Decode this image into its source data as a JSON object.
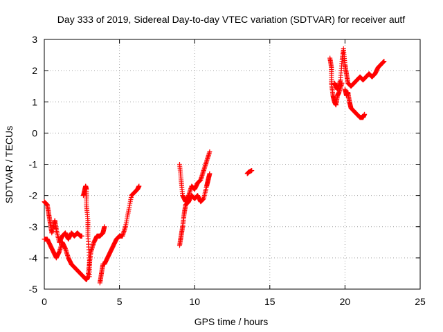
{
  "chart_data": {
    "type": "scatter",
    "title": "Day 333 of 2019, Sidereal Day-to-day VTEC variation (SDTVAR) for receiver autf",
    "xlabel": "GPS time / hours",
    "ylabel": "SDTVAR / TECUs",
    "xlim": [
      0,
      25
    ],
    "ylim": [
      -5,
      3
    ],
    "xticks": [
      0,
      5,
      10,
      15,
      20,
      25
    ],
    "yticks": [
      -5,
      -4,
      -3,
      -2,
      -1,
      0,
      1,
      2,
      3
    ],
    "xtick_labels": [
      "0",
      "5",
      "10",
      "15",
      "20",
      "25"
    ],
    "ytick_labels": [
      "-5",
      "-4",
      "-3",
      "-2",
      "-1",
      "0",
      "1",
      "2",
      "3"
    ],
    "grid": true,
    "marker": "plus",
    "color": "#ff0000",
    "series": [
      {
        "segments": [
          [
            [
              0.0,
              -2.2
            ],
            [
              0.2,
              -2.3
            ],
            [
              0.3,
              -2.6
            ],
            [
              0.4,
              -2.9
            ],
            [
              0.5,
              -3.2
            ],
            [
              0.7,
              -2.8
            ],
            [
              0.8,
              -3.1
            ],
            [
              1.0,
              -3.5
            ],
            [
              1.2,
              -3.3
            ],
            [
              1.4,
              -3.2
            ],
            [
              1.6,
              -3.4
            ],
            [
              1.8,
              -3.2
            ],
            [
              2.0,
              -3.3
            ],
            [
              2.2,
              -3.2
            ],
            [
              2.4,
              -3.3
            ],
            [
              2.5,
              -3.3
            ]
          ],
          [
            [
              0.0,
              -3.4
            ],
            [
              0.2,
              -3.4
            ],
            [
              0.4,
              -3.6
            ],
            [
              0.6,
              -3.8
            ],
            [
              0.8,
              -4.0
            ],
            [
              1.0,
              -3.8
            ],
            [
              1.2,
              -3.5
            ],
            [
              1.4,
              -3.7
            ],
            [
              1.6,
              -4.0
            ],
            [
              1.8,
              -4.2
            ],
            [
              2.0,
              -4.3
            ],
            [
              2.2,
              -4.4
            ],
            [
              2.4,
              -4.5
            ],
            [
              2.6,
              -4.6
            ],
            [
              2.8,
              -4.7
            ],
            [
              2.9,
              -4.6
            ]
          ],
          [
            [
              2.6,
              -2.0
            ],
            [
              2.7,
              -1.8
            ],
            [
              2.75,
              -1.7
            ],
            [
              2.8,
              -1.8
            ],
            [
              2.8,
              -2.3
            ],
            [
              2.9,
              -2.8
            ],
            [
              2.9,
              -3.3
            ],
            [
              3.0,
              -4.0
            ],
            [
              3.0,
              -4.6
            ]
          ],
          [
            [
              2.9,
              -4.6
            ],
            [
              3.0,
              -4.2
            ],
            [
              3.1,
              -3.8
            ],
            [
              3.3,
              -3.5
            ],
            [
              3.5,
              -3.3
            ],
            [
              3.7,
              -3.3
            ],
            [
              3.9,
              -3.2
            ],
            [
              4.0,
              -3.0
            ]
          ],
          [
            [
              3.7,
              -4.8
            ],
            [
              3.8,
              -4.5
            ],
            [
              3.9,
              -4.2
            ],
            [
              4.0,
              -4.2
            ],
            [
              4.2,
              -4.0
            ],
            [
              4.4,
              -3.8
            ],
            [
              4.6,
              -3.6
            ],
            [
              4.8,
              -3.4
            ],
            [
              5.0,
              -3.3
            ],
            [
              5.2,
              -3.3
            ],
            [
              5.4,
              -3.0
            ],
            [
              5.6,
              -2.5
            ],
            [
              5.8,
              -2.0
            ],
            [
              6.0,
              -1.9
            ],
            [
              6.2,
              -1.8
            ],
            [
              6.3,
              -1.7
            ]
          ],
          [
            [
              9.0,
              -3.6
            ],
            [
              9.1,
              -3.3
            ],
            [
              9.2,
              -3.0
            ],
            [
              9.3,
              -2.6
            ],
            [
              9.4,
              -2.3
            ],
            [
              9.6,
              -2.2
            ],
            [
              9.8,
              -2.0
            ],
            [
              10.0,
              -2.1
            ],
            [
              10.2,
              -2.0
            ],
            [
              10.4,
              -2.2
            ],
            [
              10.6,
              -2.1
            ],
            [
              10.8,
              -1.7
            ],
            [
              10.9,
              -1.5
            ],
            [
              11.0,
              -1.3
            ]
          ],
          [
            [
              9.0,
              -1.0
            ],
            [
              9.1,
              -1.5
            ],
            [
              9.2,
              -2.0
            ],
            [
              9.4,
              -2.2
            ],
            [
              9.6,
              -2.0
            ],
            [
              9.8,
              -1.7
            ],
            [
              10.0,
              -1.8
            ],
            [
              10.2,
              -1.6
            ],
            [
              10.4,
              -1.5
            ],
            [
              10.6,
              -1.2
            ],
            [
              10.8,
              -0.9
            ],
            [
              11.0,
              -0.6
            ]
          ],
          [
            [
              13.5,
              -1.3
            ],
            [
              13.6,
              -1.25
            ],
            [
              13.8,
              -1.2
            ]
          ],
          [
            [
              19.0,
              2.4
            ],
            [
              19.1,
              2.1
            ],
            [
              19.1,
              1.6
            ],
            [
              19.2,
              1.2
            ],
            [
              19.3,
              1.0
            ],
            [
              19.4,
              0.9
            ],
            [
              19.5,
              1.2
            ],
            [
              19.6,
              1.3
            ],
            [
              19.8,
              1.6
            ]
          ],
          [
            [
              19.3,
              1.6
            ],
            [
              19.4,
              1.5
            ],
            [
              19.5,
              1.4
            ],
            [
              19.7,
              1.7
            ],
            [
              19.8,
              2.3
            ],
            [
              19.9,
              2.7
            ],
            [
              20.0,
              2.2
            ],
            [
              20.1,
              1.9
            ],
            [
              20.2,
              1.6
            ],
            [
              20.4,
              1.5
            ],
            [
              20.6,
              1.6
            ],
            [
              20.8,
              1.7
            ],
            [
              21.0,
              1.8
            ],
            [
              21.2,
              1.7
            ],
            [
              21.4,
              1.8
            ],
            [
              21.6,
              1.9
            ],
            [
              21.8,
              1.8
            ],
            [
              22.0,
              1.9
            ],
            [
              22.2,
              2.1
            ],
            [
              22.4,
              2.2
            ],
            [
              22.6,
              2.3
            ]
          ],
          [
            [
              20.0,
              1.4
            ],
            [
              20.1,
              1.2
            ],
            [
              20.2,
              1.3
            ],
            [
              20.3,
              1.0
            ],
            [
              20.4,
              0.8
            ],
            [
              20.6,
              0.7
            ],
            [
              20.8,
              0.6
            ],
            [
              21.0,
              0.5
            ],
            [
              21.2,
              0.5
            ],
            [
              21.3,
              0.6
            ]
          ]
        ]
      }
    ]
  }
}
